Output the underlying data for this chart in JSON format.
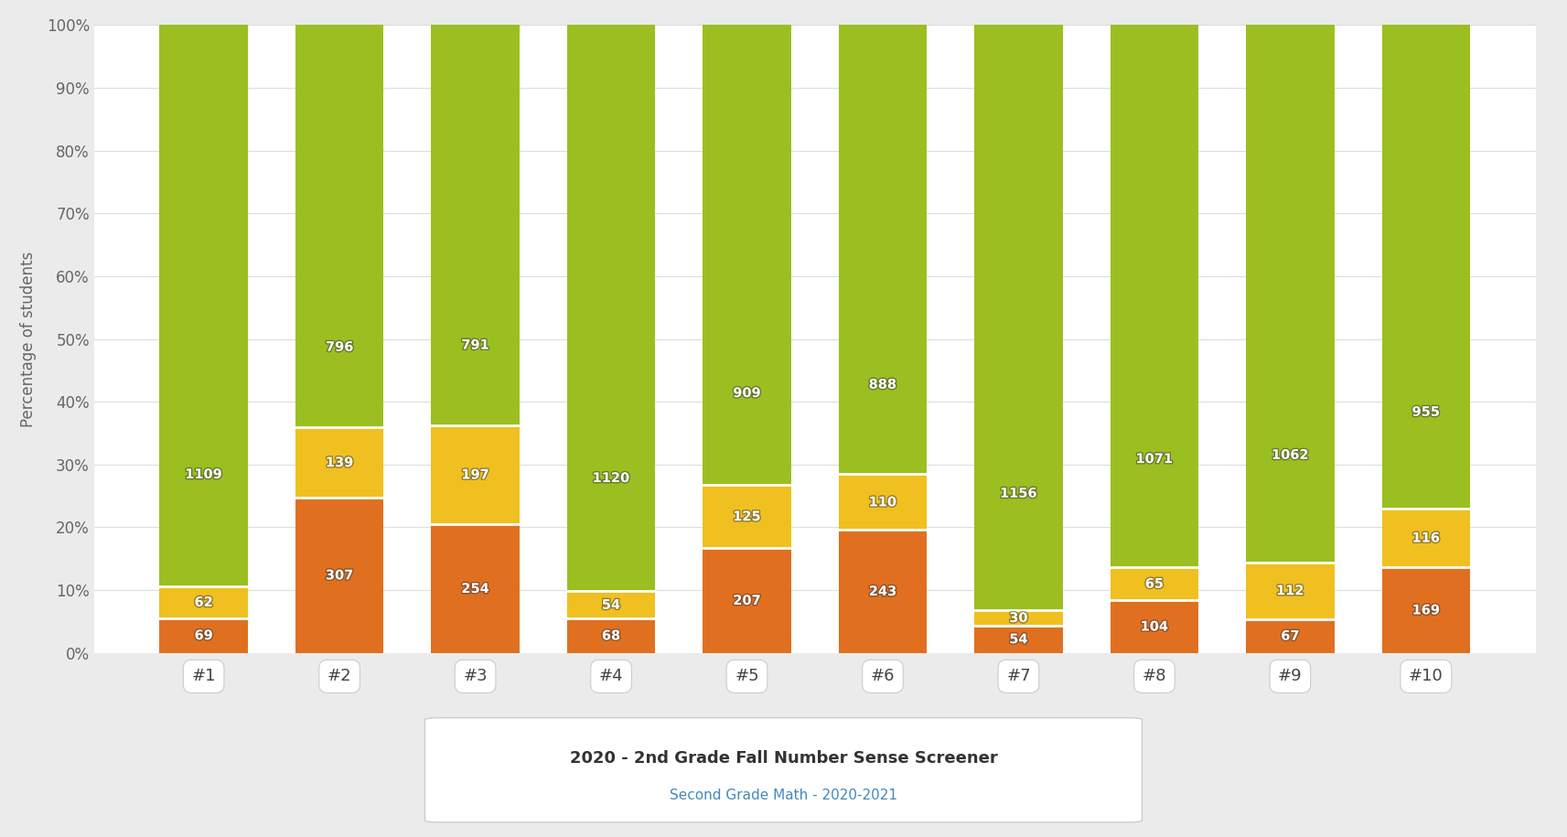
{
  "categories": [
    "#1",
    "#2",
    "#3",
    "#4",
    "#5",
    "#6",
    "#7",
    "#8",
    "#9",
    "#10"
  ],
  "bottom_values": [
    69,
    307,
    254,
    68,
    207,
    243,
    54,
    104,
    67,
    169
  ],
  "middle_values": [
    62,
    139,
    197,
    54,
    125,
    110,
    30,
    65,
    112,
    116
  ],
  "top_values": [
    1109,
    796,
    791,
    1120,
    909,
    888,
    1156,
    1071,
    1062,
    955
  ],
  "bottom_color": "#E07020",
  "middle_color": "#F0C020",
  "top_color": "#9BBF20",
  "background_color": "#EBEBEB",
  "plot_background": "#FFFFFF",
  "title_line1": "2020 - 2nd Grade Fall Number Sense Screener",
  "title_line2": "Second Grade Math - 2020-2021",
  "ylabel": "Percentage of students",
  "text_color": "#FFFFFF",
  "axis_label_color": "#666666",
  "title_color": "#333333",
  "subtitle_color": "#4488BB",
  "grid_color": "#DDDDDD",
  "bar_width": 0.65,
  "ytick_labels": [
    "0%",
    "10%",
    "20%",
    "30%",
    "40%",
    "50%",
    "60%",
    "70%",
    "80%",
    "90%",
    "100%"
  ]
}
